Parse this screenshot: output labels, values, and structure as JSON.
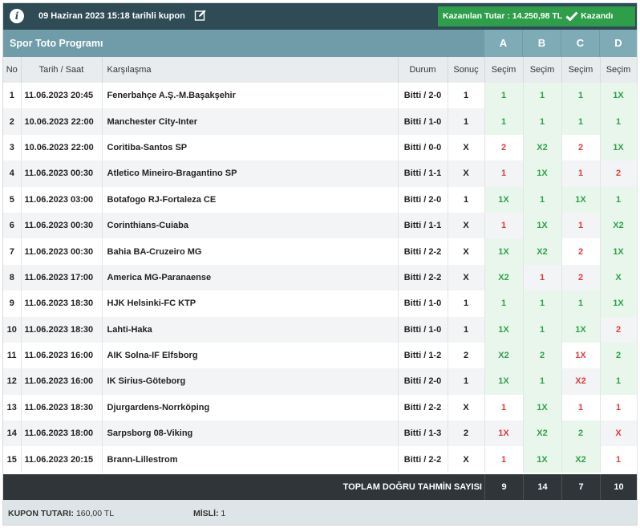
{
  "coupon": {
    "title": "09 Haziran 2023 15:18 tarihli kupon",
    "won_label": "Kazanılan Tutar : 14.250,98 TL",
    "won_status": "Kazandı",
    "info_icon": "i"
  },
  "program": {
    "title": "Spor Toto Programı",
    "letters": [
      "A",
      "B",
      "C",
      "D"
    ]
  },
  "columns": {
    "no": "No",
    "datetime": "Tarih / Saat",
    "match": "Karşılaşma",
    "status": "Durum",
    "result": "Sonuç",
    "pick": "Seçim"
  },
  "rows": [
    {
      "no": "1",
      "date": "11.06.2023 20:45",
      "match": "Fenerbahçe A.Ş.-M.Başakşehir",
      "status": "Bitti / 2-0",
      "result": "1",
      "picks": [
        "1",
        "1",
        "1",
        "1X"
      ]
    },
    {
      "no": "2",
      "date": "10.06.2023 22:00",
      "match": "Manchester City-Inter",
      "status": "Bitti / 1-0",
      "result": "1",
      "picks": [
        "1",
        "1",
        "1",
        "1"
      ]
    },
    {
      "no": "3",
      "date": "10.06.2023 22:00",
      "match": "Coritiba-Santos SP",
      "status": "Bitti / 0-0",
      "result": "X",
      "picks": [
        "2",
        "X2",
        "2",
        "1X"
      ]
    },
    {
      "no": "4",
      "date": "11.06.2023 00:30",
      "match": "Atletico Mineiro-Bragantino SP",
      "status": "Bitti / 1-1",
      "result": "X",
      "picks": [
        "1",
        "1X",
        "1",
        "2"
      ]
    },
    {
      "no": "5",
      "date": "11.06.2023 03:00",
      "match": "Botafogo RJ-Fortaleza CE",
      "status": "Bitti / 2-0",
      "result": "1",
      "picks": [
        "1X",
        "1",
        "1X",
        "1"
      ]
    },
    {
      "no": "6",
      "date": "11.06.2023 00:30",
      "match": "Corinthians-Cuiaba",
      "status": "Bitti / 1-1",
      "result": "X",
      "picks": [
        "1",
        "1X",
        "1",
        "X2"
      ]
    },
    {
      "no": "7",
      "date": "11.06.2023 00:30",
      "match": "Bahia BA-Cruzeiro MG",
      "status": "Bitti / 2-2",
      "result": "X",
      "picks": [
        "1X",
        "X2",
        "2",
        "1X"
      ]
    },
    {
      "no": "8",
      "date": "11.06.2023 17:00",
      "match": "America MG-Paranaense",
      "status": "Bitti / 2-2",
      "result": "X",
      "picks": [
        "X2",
        "1",
        "2",
        "X"
      ]
    },
    {
      "no": "9",
      "date": "11.06.2023 18:30",
      "match": "HJK Helsinki-FC KTP",
      "status": "Bitti / 1-0",
      "result": "1",
      "picks": [
        "1",
        "1",
        "1",
        "1X"
      ]
    },
    {
      "no": "10",
      "date": "11.06.2023 18:30",
      "match": "Lahti-Haka",
      "status": "Bitti / 1-0",
      "result": "1",
      "picks": [
        "1X",
        "1",
        "1X",
        "2"
      ]
    },
    {
      "no": "11",
      "date": "11.06.2023 16:00",
      "match": "AIK Solna-IF Elfsborg",
      "status": "Bitti / 1-2",
      "result": "2",
      "picks": [
        "X2",
        "2",
        "1X",
        "2"
      ]
    },
    {
      "no": "12",
      "date": "11.06.2023 16:00",
      "match": "IK Sirius-Göteborg",
      "status": "Bitti / 2-0",
      "result": "1",
      "picks": [
        "1X",
        "1",
        "X2",
        "1"
      ]
    },
    {
      "no": "13",
      "date": "11.06.2023 18:30",
      "match": "Djurgardens-Norrköping",
      "status": "Bitti / 2-2",
      "result": "X",
      "picks": [
        "1",
        "1X",
        "1",
        "1"
      ]
    },
    {
      "no": "14",
      "date": "11.06.2023 18:00",
      "match": "Sarpsborg 08-Viking",
      "status": "Bitti / 1-3",
      "result": "2",
      "picks": [
        "1X",
        "X2",
        "2",
        "X"
      ]
    },
    {
      "no": "15",
      "date": "11.06.2023 20:15",
      "match": "Brann-Lillestrom",
      "status": "Bitti / 2-2",
      "result": "X",
      "picks": [
        "1",
        "1X",
        "X2",
        "1"
      ]
    }
  ],
  "totals": {
    "label": "TOPLAM DOĞRU TAHMİN SAYISI",
    "values": [
      "9",
      "14",
      "7",
      "10"
    ]
  },
  "footer": {
    "amount_label": "KUPON TUTARI:",
    "amount_value": "160,00 TL",
    "multiplier_label": "MİSLİ:",
    "multiplier_value": "1"
  },
  "colors": {
    "header_dark": "#2e4b56",
    "header_teal": "#6f9ca8",
    "won_green": "#2e9e4a",
    "pick_correct": "#2fa24a",
    "pick_wrong": "#e13b3b",
    "total_bar": "#2f3538"
  },
  "icons": {
    "info": "info-icon",
    "edit": "edit-icon",
    "won": "check-icon"
  }
}
